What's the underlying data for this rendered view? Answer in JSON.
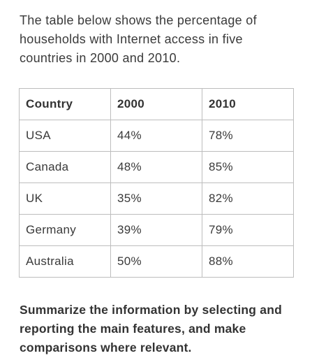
{
  "intro": "The table below shows the percentage of households with Internet access in five countries in 2000 and 2010.",
  "table": {
    "headers": [
      "Country",
      "2000",
      "2010"
    ],
    "rows": [
      [
        "USA",
        "44%",
        "78%"
      ],
      [
        "Canada",
        "48%",
        "85%"
      ],
      [
        "UK",
        "35%",
        "82%"
      ],
      [
        "Germany",
        "39%",
        "79%"
      ],
      [
        "Australia",
        "50%",
        "88%"
      ]
    ]
  },
  "prompt": "Summarize the information by selecting and reporting the main features, and make comparisons where relevant."
}
